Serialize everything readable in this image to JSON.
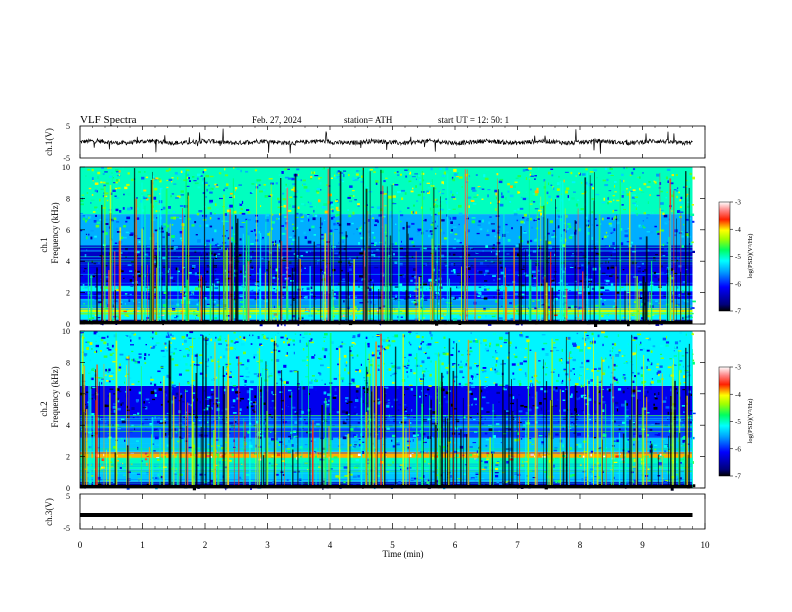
{
  "header": {
    "title": "VLF  Spectra",
    "date": "Feb. 27, 2024",
    "station": "station= ATH",
    "start": "start  UT  =    12: 50: 1"
  },
  "chart_data": [
    {
      "type": "line",
      "name": "ch1-waveform",
      "ylabel": "ch.1(V)",
      "ylim": [
        -5,
        5
      ],
      "yticks": [
        "5",
        "-5"
      ],
      "xlim": [
        0,
        10
      ],
      "trace_color": "#000000"
    },
    {
      "type": "heatmap",
      "name": "ch1-spectrogram",
      "ylabel": "ch.1\nFrequency  (kHz)",
      "ylabel_line1": "ch.1",
      "ylabel_line2": "Frequency  (kHz)",
      "ylim": [
        0,
        10
      ],
      "yticks": [
        "0",
        "2",
        "4",
        "6",
        "8",
        "10"
      ],
      "xlim": [
        0,
        10
      ],
      "data_extent_min": 9.8,
      "colorbar": {
        "label": "log(PSD)(V²/Hz)",
        "ticks": [
          "-3",
          "-4",
          "-5",
          "-6",
          "-7"
        ],
        "range": [
          -7,
          -3
        ]
      },
      "bands_khz": [
        {
          "from": 0.0,
          "to": 0.3,
          "level": -6.8
        },
        {
          "from": 0.3,
          "to": 0.6,
          "level": -5.2
        },
        {
          "from": 0.6,
          "to": 1.0,
          "level": -4.2
        },
        {
          "from": 1.0,
          "to": 1.6,
          "level": -5.6
        },
        {
          "from": 1.6,
          "to": 2.1,
          "level": -6.1
        },
        {
          "from": 2.1,
          "to": 2.4,
          "level": -5.2
        },
        {
          "from": 2.4,
          "to": 3.6,
          "level": -6.2
        },
        {
          "from": 3.6,
          "to": 5.0,
          "level": -6.4
        },
        {
          "from": 5.0,
          "to": 7.0,
          "level": -5.5
        },
        {
          "from": 7.0,
          "to": 10.0,
          "level": -5.0
        }
      ]
    },
    {
      "type": "heatmap",
      "name": "ch2-spectrogram",
      "ylabel": "ch.2\nFrequency  (kHz)",
      "ylabel_line1": "ch.2",
      "ylabel_line2": "Frequency  (kHz)",
      "ylim": [
        0,
        10
      ],
      "yticks": [
        "0",
        "2",
        "4",
        "6",
        "8",
        "10"
      ],
      "xlim": [
        0,
        10
      ],
      "data_extent_min": 9.8,
      "colorbar": {
        "label": "log(PSD)(V²/Hz)",
        "ticks": [
          "-3",
          "-4",
          "-5",
          "-6",
          "-7"
        ],
        "range": [
          -7,
          -3
        ]
      },
      "bands_khz": [
        {
          "from": 0.0,
          "to": 0.4,
          "level": -6.5
        },
        {
          "from": 0.4,
          "to": 1.2,
          "level": -5.4
        },
        {
          "from": 1.2,
          "to": 1.9,
          "level": -5.0
        },
        {
          "from": 1.9,
          "to": 2.3,
          "level": -3.9
        },
        {
          "from": 2.3,
          "to": 3.2,
          "level": -5.4
        },
        {
          "from": 3.2,
          "to": 4.6,
          "level": -5.9
        },
        {
          "from": 4.6,
          "to": 6.5,
          "level": -6.2
        },
        {
          "from": 6.5,
          "to": 10.0,
          "level": -5.2
        }
      ]
    },
    {
      "type": "line",
      "name": "ch3-waveform",
      "ylabel": "ch.3(V)",
      "ylim": [
        -5,
        5
      ],
      "yticks": [
        "5",
        "-5"
      ],
      "xlim": [
        0,
        10
      ],
      "xticks": [
        "0",
        "1",
        "2",
        "3",
        "4",
        "5",
        "6",
        "7",
        "8",
        "9",
        "10"
      ],
      "xlabel": "Time  (min)",
      "trace_level_v": -1,
      "trace_color": "#000000"
    }
  ]
}
